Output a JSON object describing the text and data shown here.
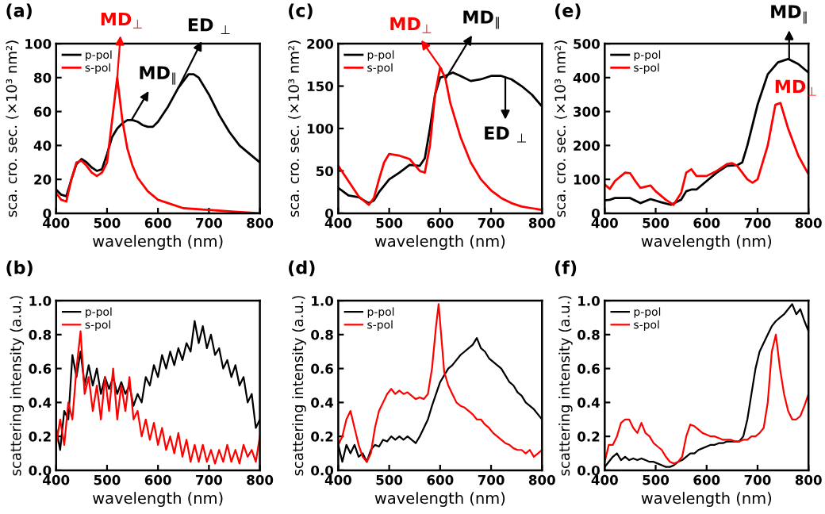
{
  "chart_data": [
    {
      "type": "line",
      "title": "(a)",
      "xlabel": "wavelength (nm)",
      "ylabel": "sca. cro. sec. (×10³ nm²)",
      "xlim": [
        400,
        800
      ],
      "xticks": [
        400,
        500,
        600,
        700,
        800
      ],
      "ylim": [
        0,
        100
      ],
      "yticks": [
        0,
        20,
        40,
        60,
        80,
        100
      ],
      "legend": "top left",
      "grid": false,
      "annotations": [
        {
          "text": "MD$_{⊥}$",
          "x": 520,
          "y": 80
        },
        {
          "text": "MD$_{∥}$",
          "x": 548,
          "y": 55
        },
        {
          "text": "ED $_{⊥}$",
          "x": 640,
          "y": 74
        }
      ],
      "series": [
        {
          "name": "p-pol",
          "color": "#000000",
          "x": [
            400,
            410,
            420,
            430,
            440,
            450,
            460,
            470,
            480,
            490,
            500,
            510,
            520,
            530,
            540,
            550,
            560,
            570,
            580,
            590,
            600,
            620,
            640,
            660,
            670,
            680,
            700,
            720,
            740,
            760,
            780,
            800
          ],
          "values": [
            14,
            11,
            10,
            20,
            29,
            32,
            30,
            27,
            25,
            26,
            35,
            45,
            50,
            53,
            55,
            55,
            54,
            52,
            51,
            51,
            54,
            63,
            74,
            82,
            82,
            80,
            70,
            58,
            48,
            40,
            35,
            30
          ]
        },
        {
          "name": "s-pol",
          "color": "#ff0000",
          "x": [
            400,
            410,
            420,
            430,
            440,
            450,
            460,
            470,
            480,
            490,
            500,
            510,
            520,
            530,
            540,
            550,
            560,
            580,
            600,
            620,
            650,
            700,
            750,
            800
          ],
          "values": [
            12,
            8,
            7,
            20,
            30,
            31,
            28,
            24,
            22,
            24,
            30,
            55,
            80,
            55,
            38,
            28,
            21,
            13,
            8,
            6,
            3,
            2,
            1,
            0
          ]
        }
      ]
    },
    {
      "type": "line",
      "title": "(c)",
      "xlabel": "wavelength (nm)",
      "ylabel": "sca. cro. sec. (×10³ nm²)",
      "xlim": [
        400,
        800
      ],
      "xticks": [
        400,
        500,
        600,
        700,
        800
      ],
      "ylim": [
        0,
        200
      ],
      "yticks": [
        0,
        50,
        100,
        150,
        200
      ],
      "legend": "top left",
      "grid": false,
      "annotations": [
        {
          "text": "MD$_{⊥}$",
          "x": 603,
          "y": 170
        },
        {
          "text": "MD$_{∥}$",
          "x": 612,
          "y": 160
        },
        {
          "text": "ED $_{⊥}$",
          "x": 728,
          "y": 160
        }
      ],
      "series": [
        {
          "name": "p-pol",
          "color": "#000000",
          "x": [
            400,
            420,
            440,
            460,
            470,
            480,
            500,
            520,
            540,
            560,
            570,
            580,
            590,
            600,
            610,
            625,
            640,
            660,
            680,
            700,
            720,
            740,
            760,
            780,
            800
          ],
          "values": [
            30,
            21,
            19,
            12,
            15,
            25,
            40,
            48,
            57,
            56,
            65,
            100,
            140,
            160,
            162,
            166,
            162,
            156,
            158,
            162,
            162,
            158,
            150,
            140,
            126
          ]
        },
        {
          "name": "s-pol",
          "color": "#ff0000",
          "x": [
            400,
            420,
            440,
            460,
            470,
            480,
            490,
            500,
            520,
            540,
            560,
            570,
            580,
            590,
            600,
            610,
            620,
            640,
            660,
            680,
            700,
            720,
            740,
            760,
            780,
            800
          ],
          "values": [
            56,
            38,
            20,
            10,
            18,
            40,
            60,
            70,
            68,
            64,
            50,
            48,
            80,
            140,
            172,
            160,
            130,
            90,
            60,
            40,
            27,
            18,
            12,
            8,
            6,
            4
          ]
        }
      ]
    },
    {
      "type": "line",
      "title": "(e)",
      "xlabel": "wavelength (nm)",
      "ylabel": "sca. cro. sec. (×10³ nm²)",
      "xlim": [
        400,
        800
      ],
      "xticks": [
        400,
        500,
        600,
        700,
        800
      ],
      "ylim": [
        0,
        500
      ],
      "yticks": [
        0,
        100,
        200,
        300,
        400,
        500
      ],
      "legend": "top left",
      "grid": false,
      "annotations": [
        {
          "text": "MD$_{∥}$",
          "x": 762,
          "y": 455
        },
        {
          "text": "MD$_{⊥}$",
          "x": 745,
          "y": 325
        }
      ],
      "series": [
        {
          "name": "p-pol",
          "color": "#000000",
          "x": [
            400,
            410,
            420,
            450,
            470,
            490,
            510,
            530,
            550,
            560,
            570,
            580,
            600,
            620,
            640,
            660,
            670,
            680,
            700,
            720,
            740,
            760,
            780,
            800
          ],
          "values": [
            38,
            40,
            45,
            45,
            30,
            42,
            33,
            25,
            40,
            65,
            70,
            70,
            95,
            120,
            140,
            142,
            150,
            200,
            320,
            410,
            445,
            455,
            440,
            415
          ]
        },
        {
          "name": "s-pol",
          "color": "#ff0000",
          "x": [
            400,
            410,
            420,
            440,
            450,
            460,
            470,
            490,
            500,
            520,
            535,
            550,
            560,
            570,
            580,
            600,
            620,
            640,
            650,
            660,
            680,
            690,
            700,
            720,
            735,
            745,
            760,
            780,
            800
          ],
          "values": [
            85,
            72,
            95,
            120,
            118,
            95,
            75,
            82,
            65,
            40,
            25,
            60,
            120,
            130,
            110,
            110,
            125,
            145,
            148,
            140,
            100,
            90,
            100,
            200,
            320,
            325,
            250,
            170,
            115
          ]
        }
      ]
    },
    {
      "type": "line",
      "title": "(b)",
      "xlabel": "wavelength (nm)",
      "ylabel": "scattering intensity (a.u.)",
      "xlim": [
        400,
        800
      ],
      "xticks": [
        400,
        500,
        600,
        700,
        800
      ],
      "ylim": [
        0,
        1
      ],
      "yticks": [
        {
          "value": 0,
          "label": "0.0"
        },
        {
          "value": 0.2,
          "label": "0.2"
        },
        {
          "value": 0.4,
          "label": "0.4"
        },
        {
          "value": 0.6,
          "label": "0.6"
        },
        {
          "value": 0.8,
          "label": "0.8"
        },
        {
          "value": 1,
          "label": "1.0"
        }
      ],
      "legend": "top left",
      "grid": false,
      "series": [
        {
          "name": "p-pol",
          "color": "#000000",
          "x": [
            400,
            408,
            416,
            424,
            432,
            440,
            448,
            456,
            464,
            472,
            480,
            488,
            496,
            504,
            512,
            520,
            528,
            536,
            544,
            552,
            560,
            568,
            576,
            584,
            592,
            600,
            608,
            616,
            624,
            632,
            640,
            648,
            656,
            664,
            672,
            680,
            688,
            696,
            704,
            712,
            720,
            728,
            736,
            744,
            752,
            760,
            768,
            776,
            784,
            792,
            800
          ],
          "values": [
            0.25,
            0.12,
            0.35,
            0.3,
            0.68,
            0.55,
            0.7,
            0.5,
            0.62,
            0.5,
            0.6,
            0.45,
            0.55,
            0.48,
            0.55,
            0.45,
            0.52,
            0.45,
            0.5,
            0.38,
            0.45,
            0.4,
            0.55,
            0.5,
            0.62,
            0.55,
            0.68,
            0.6,
            0.7,
            0.62,
            0.72,
            0.65,
            0.75,
            0.7,
            0.88,
            0.75,
            0.85,
            0.72,
            0.8,
            0.68,
            0.72,
            0.6,
            0.65,
            0.55,
            0.62,
            0.5,
            0.55,
            0.4,
            0.45,
            0.25,
            0.3
          ]
        },
        {
          "name": "s-pol",
          "color": "#ff0000",
          "x": [
            400,
            408,
            416,
            424,
            432,
            440,
            448,
            456,
            464,
            472,
            480,
            488,
            496,
            504,
            512,
            520,
            528,
            536,
            544,
            552,
            560,
            568,
            576,
            584,
            592,
            600,
            608,
            616,
            624,
            632,
            640,
            648,
            656,
            664,
            672,
            680,
            688,
            696,
            704,
            712,
            720,
            728,
            736,
            744,
            752,
            760,
            768,
            776,
            784,
            792,
            800
          ],
          "values": [
            0.15,
            0.3,
            0.15,
            0.4,
            0.3,
            0.6,
            0.82,
            0.45,
            0.55,
            0.35,
            0.5,
            0.3,
            0.55,
            0.35,
            0.6,
            0.3,
            0.5,
            0.35,
            0.55,
            0.3,
            0.35,
            0.2,
            0.3,
            0.18,
            0.28,
            0.15,
            0.25,
            0.12,
            0.2,
            0.1,
            0.22,
            0.08,
            0.18,
            0.05,
            0.15,
            0.05,
            0.15,
            0.05,
            0.12,
            0.04,
            0.12,
            0.05,
            0.15,
            0.05,
            0.12,
            0.04,
            0.15,
            0.08,
            0.12,
            0.05,
            0.2
          ]
        }
      ]
    },
    {
      "type": "line",
      "title": "(d)",
      "xlabel": "wavelength (nm)",
      "ylabel": "scattering intensity (a.u.)",
      "xlim": [
        400,
        800
      ],
      "xticks": [
        400,
        500,
        600,
        700,
        800
      ],
      "ylim": [
        0,
        1
      ],
      "yticks": [
        {
          "value": 0,
          "label": "0.0"
        },
        {
          "value": 0.2,
          "label": "0.2"
        },
        {
          "value": 0.4,
          "label": "0.4"
        },
        {
          "value": 0.6,
          "label": "0.6"
        },
        {
          "value": 0.8,
          "label": "0.8"
        },
        {
          "value": 1,
          "label": "1.0"
        }
      ],
      "legend": "top left",
      "grid": false,
      "series": [
        {
          "name": "p-pol",
          "color": "#000000",
          "x": [
            400,
            408,
            416,
            424,
            432,
            440,
            448,
            456,
            464,
            472,
            480,
            488,
            496,
            504,
            512,
            520,
            528,
            536,
            544,
            552,
            560,
            568,
            576,
            584,
            592,
            600,
            608,
            616,
            624,
            632,
            640,
            648,
            656,
            664,
            672,
            680,
            688,
            696,
            704,
            712,
            720,
            728,
            736,
            744,
            752,
            760,
            768,
            776,
            784,
            792,
            800
          ],
          "values": [
            0.15,
            0.05,
            0.15,
            0.1,
            0.15,
            0.08,
            0.1,
            0.05,
            0.12,
            0.15,
            0.14,
            0.18,
            0.17,
            0.2,
            0.18,
            0.2,
            0.18,
            0.2,
            0.18,
            0.16,
            0.2,
            0.25,
            0.3,
            0.38,
            0.45,
            0.52,
            0.56,
            0.6,
            0.62,
            0.65,
            0.68,
            0.7,
            0.72,
            0.74,
            0.78,
            0.72,
            0.7,
            0.66,
            0.64,
            0.62,
            0.6,
            0.56,
            0.52,
            0.5,
            0.46,
            0.44,
            0.4,
            0.38,
            0.36,
            0.33,
            0.3
          ]
        },
        {
          "name": "s-pol",
          "color": "#ff0000",
          "x": [
            400,
            408,
            416,
            424,
            432,
            440,
            448,
            456,
            464,
            472,
            480,
            488,
            496,
            504,
            512,
            520,
            528,
            536,
            544,
            552,
            560,
            568,
            576,
            584,
            592,
            597,
            602,
            608,
            616,
            624,
            632,
            640,
            648,
            656,
            664,
            672,
            680,
            688,
            696,
            704,
            712,
            720,
            728,
            736,
            744,
            752,
            760,
            768,
            776,
            784,
            792,
            800
          ],
          "values": [
            0.15,
            0.2,
            0.3,
            0.35,
            0.25,
            0.15,
            0.08,
            0.05,
            0.1,
            0.25,
            0.35,
            0.4,
            0.45,
            0.48,
            0.45,
            0.47,
            0.45,
            0.46,
            0.44,
            0.42,
            0.43,
            0.42,
            0.45,
            0.6,
            0.85,
            0.98,
            0.8,
            0.58,
            0.5,
            0.45,
            0.4,
            0.38,
            0.37,
            0.35,
            0.33,
            0.3,
            0.3,
            0.27,
            0.25,
            0.22,
            0.2,
            0.18,
            0.16,
            0.15,
            0.13,
            0.12,
            0.12,
            0.1,
            0.12,
            0.08,
            0.1,
            0.12
          ]
        }
      ]
    },
    {
      "type": "line",
      "title": "(f)",
      "xlabel": "wavelength (nm)",
      "ylabel": "scattering intensity (a.u.)",
      "xlim": [
        400,
        800
      ],
      "xticks": [
        400,
        500,
        600,
        700,
        800
      ],
      "ylim": [
        0,
        1
      ],
      "yticks": [
        {
          "value": 0,
          "label": "0.0"
        },
        {
          "value": 0.2,
          "label": "0.2"
        },
        {
          "value": 0.4,
          "label": "0.4"
        },
        {
          "value": 0.6,
          "label": "0.6"
        },
        {
          "value": 0.8,
          "label": "0.8"
        },
        {
          "value": 1,
          "label": "1.0"
        }
      ],
      "legend": "top left",
      "grid": false,
      "series": [
        {
          "name": "p-pol",
          "color": "#000000",
          "x": [
            400,
            408,
            416,
            424,
            432,
            440,
            448,
            456,
            464,
            472,
            480,
            488,
            496,
            504,
            512,
            520,
            528,
            536,
            544,
            552,
            560,
            568,
            576,
            584,
            592,
            600,
            608,
            616,
            624,
            632,
            640,
            648,
            656,
            664,
            672,
            680,
            688,
            696,
            704,
            712,
            720,
            728,
            736,
            744,
            752,
            760,
            768,
            776,
            784,
            792,
            800
          ],
          "values": [
            0.02,
            0.05,
            0.08,
            0.1,
            0.06,
            0.08,
            0.06,
            0.07,
            0.06,
            0.07,
            0.06,
            0.05,
            0.05,
            0.04,
            0.03,
            0.02,
            0.02,
            0.03,
            0.05,
            0.06,
            0.08,
            0.1,
            0.1,
            0.12,
            0.13,
            0.14,
            0.15,
            0.15,
            0.16,
            0.16,
            0.17,
            0.17,
            0.17,
            0.17,
            0.2,
            0.3,
            0.45,
            0.6,
            0.7,
            0.75,
            0.8,
            0.85,
            0.88,
            0.9,
            0.92,
            0.95,
            0.98,
            0.92,
            0.95,
            0.88,
            0.82
          ]
        },
        {
          "name": "s-pol",
          "color": "#ff0000",
          "x": [
            400,
            408,
            416,
            424,
            432,
            440,
            448,
            456,
            464,
            472,
            480,
            488,
            496,
            504,
            512,
            520,
            528,
            536,
            544,
            552,
            560,
            568,
            576,
            584,
            592,
            600,
            608,
            616,
            624,
            632,
            640,
            648,
            656,
            664,
            672,
            680,
            688,
            696,
            704,
            712,
            720,
            728,
            736,
            744,
            752,
            760,
            768,
            776,
            784,
            792,
            800
          ],
          "values": [
            0.05,
            0.15,
            0.15,
            0.2,
            0.28,
            0.3,
            0.3,
            0.25,
            0.22,
            0.28,
            0.22,
            0.2,
            0.16,
            0.14,
            0.12,
            0.08,
            0.05,
            0.04,
            0.05,
            0.08,
            0.2,
            0.27,
            0.26,
            0.24,
            0.22,
            0.21,
            0.2,
            0.2,
            0.19,
            0.18,
            0.18,
            0.18,
            0.17,
            0.17,
            0.18,
            0.18,
            0.2,
            0.2,
            0.22,
            0.25,
            0.4,
            0.7,
            0.8,
            0.6,
            0.45,
            0.35,
            0.3,
            0.3,
            0.32,
            0.38,
            0.45
          ]
        }
      ]
    }
  ]
}
